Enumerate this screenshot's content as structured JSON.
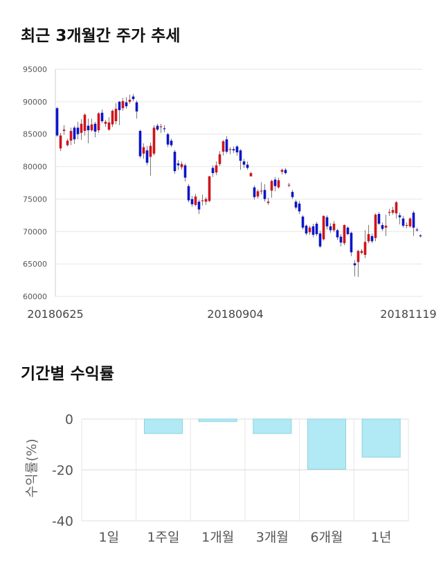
{
  "sections": {
    "price_title": "최근 3개월간 주가 추세",
    "return_title": "기간별 수익률"
  },
  "colors": {
    "up": "#d0131a",
    "down": "#0b14c9",
    "return_bar": "#b1e9f4",
    "return_bar_stroke": "#8fd2df",
    "grid": "#e6e6e6"
  },
  "chart_data": [
    {
      "type": "candlestick",
      "y_ticks": [
        60000,
        65000,
        70000,
        75000,
        80000,
        85000,
        90000,
        95000
      ],
      "y_tick_labels": [
        "60000",
        "65000",
        "70000",
        "75000",
        "80000",
        "85000",
        "90000",
        "95000"
      ],
      "ylim": [
        60000,
        95000
      ],
      "x_labels": [
        "20180625",
        "20180904",
        "20181119"
      ],
      "grid": "horizontal",
      "candles": [
        [
          89000,
          84800,
          89200,
          84600
        ],
        [
          82800,
          84800,
          85200,
          82400
        ],
        [
          85500,
          85700,
          86400,
          84900
        ],
        [
          83300,
          84000,
          84300,
          83100
        ],
        [
          84000,
          85500,
          86000,
          83300
        ],
        [
          86000,
          84200,
          86300,
          83500
        ],
        [
          86000,
          85000,
          86900,
          84200
        ],
        [
          85200,
          86600,
          87300,
          84100
        ],
        [
          85500,
          88000,
          88200,
          84800
        ],
        [
          86300,
          85600,
          87400,
          83600
        ],
        [
          85600,
          86500,
          87400,
          85400
        ],
        [
          86600,
          85400,
          86900,
          84500
        ],
        [
          85600,
          88200,
          88400,
          85200
        ],
        [
          88300,
          87000,
          88800,
          86700
        ],
        [
          86600,
          86900,
          87200,
          86100
        ],
        [
          85700,
          86800,
          87600,
          85500
        ],
        [
          86500,
          88600,
          88800,
          86100
        ],
        [
          87000,
          88900,
          89800,
          86500
        ],
        [
          90000,
          88700,
          90100,
          86400
        ],
        [
          89000,
          90100,
          90600,
          88600
        ],
        [
          89900,
          89300,
          90700,
          88900
        ],
        [
          90000,
          90300,
          91100,
          89700
        ],
        [
          90800,
          90400,
          91200,
          90100
        ],
        [
          89900,
          88500,
          90200,
          87400
        ],
        [
          85500,
          81600,
          85700,
          81300
        ],
        [
          82000,
          83000,
          83600,
          81200
        ],
        [
          82500,
          80600,
          83200,
          80200
        ],
        [
          81500,
          83200,
          83700,
          78600
        ],
        [
          82000,
          86000,
          86400,
          81700
        ],
        [
          86300,
          85700,
          86600,
          85500
        ],
        [
          86100,
          86200,
          86600,
          85200
        ],
        [
          85900,
          85800,
          86400,
          85300
        ],
        [
          85000,
          83400,
          85200,
          83000
        ],
        [
          84000,
          83300,
          84300,
          83000
        ],
        [
          82300,
          79300,
          82600,
          78900
        ],
        [
          80500,
          80200,
          81000,
          79500
        ],
        [
          79900,
          80400,
          80800,
          79500
        ],
        [
          80200,
          78300,
          80500,
          77700
        ],
        [
          77000,
          74800,
          77300,
          74500
        ],
        [
          75000,
          74200,
          75500,
          73800
        ],
        [
          74100,
          75400,
          75800,
          73900
        ],
        [
          74600,
          73400,
          74900,
          72700
        ],
        [
          74800,
          74800,
          75700,
          74000
        ],
        [
          74600,
          75000,
          75300,
          74100
        ],
        [
          74700,
          78500,
          78600,
          74500
        ],
        [
          79800,
          79000,
          80200,
          78400
        ],
        [
          79100,
          80200,
          80800,
          78700
        ],
        [
          80400,
          81900,
          82400,
          80100
        ],
        [
          82300,
          83900,
          84100,
          81700
        ],
        [
          84200,
          82300,
          84700,
          82000
        ],
        [
          82600,
          82700,
          83000,
          81900
        ],
        [
          82700,
          82500,
          83100,
          82100
        ],
        [
          83100,
          82200,
          83300,
          81700
        ],
        [
          82500,
          80900,
          82700,
          79500
        ],
        [
          80800,
          80300,
          81200,
          79800
        ],
        [
          80300,
          79800,
          80800,
          79500
        ],
        [
          78500,
          79000,
          79200,
          78500
        ],
        [
          76800,
          75300,
          77100,
          74900
        ],
        [
          75400,
          76200,
          76500,
          75100
        ],
        [
          76200,
          76300,
          77600,
          75700
        ],
        [
          76400,
          75000,
          77300,
          74600
        ],
        [
          74400,
          74600,
          75200,
          74100
        ],
        [
          76300,
          77800,
          78000,
          75200
        ],
        [
          78000,
          77000,
          78400,
          76200
        ],
        [
          76800,
          77900,
          78300,
          76600
        ],
        [
          79200,
          79500,
          79700,
          78800
        ],
        [
          79500,
          79000,
          79800,
          78800
        ],
        [
          77200,
          77200,
          77500,
          76800
        ],
        [
          76100,
          75300,
          76400,
          75000
        ],
        [
          74600,
          73700,
          74900,
          73400
        ],
        [
          74300,
          73100,
          74700,
          72700
        ],
        [
          72300,
          70600,
          72500,
          70300
        ],
        [
          70900,
          69700,
          71100,
          69400
        ],
        [
          69900,
          70600,
          70900,
          69500
        ],
        [
          70800,
          69500,
          71200,
          69100
        ],
        [
          71200,
          69600,
          71500,
          69300
        ],
        [
          69700,
          67700,
          70100,
          67500
        ],
        [
          68800,
          72400,
          72500,
          68600
        ],
        [
          72200,
          70800,
          72500,
          70300
        ],
        [
          70800,
          70200,
          71300,
          69800
        ],
        [
          70200,
          71200,
          71600,
          69900
        ],
        [
          70200,
          69100,
          70400,
          68700
        ],
        [
          69200,
          68300,
          69600,
          67700
        ],
        [
          68200,
          71000,
          71100,
          67900
        ],
        [
          70600,
          69600,
          70800,
          69400
        ],
        [
          69800,
          66800,
          70000,
          66200
        ],
        [
          65100,
          64800,
          65600,
          63100
        ],
        [
          65300,
          67000,
          67200,
          63000
        ],
        [
          66700,
          67000,
          67300,
          66500
        ],
        [
          66400,
          68400,
          70200,
          65900
        ],
        [
          68500,
          69600,
          71000,
          68200
        ],
        [
          69300,
          68500,
          69700,
          68200
        ],
        [
          69000,
          72600,
          72800,
          68500
        ],
        [
          72700,
          71200,
          73000,
          71000
        ],
        [
          71000,
          70400,
          71400,
          70100
        ],
        [
          70600,
          70900,
          72600,
          69300
        ],
        [
          72900,
          73000,
          73500,
          72400
        ],
        [
          72900,
          73300,
          73800,
          72600
        ],
        [
          72800,
          74500,
          74700,
          72000
        ],
        [
          72500,
          72200,
          72900,
          71100
        ],
        [
          72000,
          70900,
          72400,
          70600
        ],
        [
          70900,
          71000,
          71400,
          70500
        ],
        [
          70800,
          72000,
          72200,
          70600
        ],
        [
          72900,
          70600,
          73200,
          69300
        ],
        [
          70300,
          70200,
          70600,
          70000
        ],
        [
          69400,
          69300,
          69600,
          69100
        ]
      ]
    },
    {
      "type": "bar",
      "categories": [
        "1일",
        "1주일",
        "1개월",
        "3개월",
        "6개월",
        "1년"
      ],
      "values": [
        0,
        -5.7,
        -1.0,
        -5.7,
        -19.7,
        -15.0
      ],
      "ylabel": "수익률(%)",
      "ylim": [
        -40,
        0
      ],
      "y_ticks": [
        0,
        -20,
        -40
      ],
      "y_tick_labels": [
        "0",
        "-20",
        "-40"
      ],
      "grid": "vertical"
    }
  ]
}
